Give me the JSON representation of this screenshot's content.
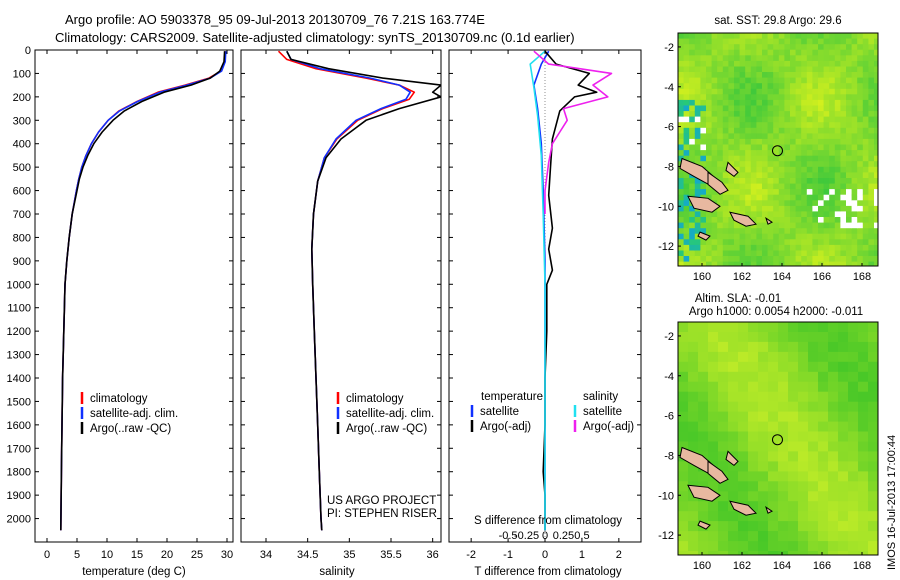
{
  "header": {
    "title_line1": "Argo profile: AO 5903378_95 09-Jul-2013 20130709_76 7.21S 163.774E",
    "title_line2": "Climatology: CARS2009. Satellite-adjusted climatology: synTS_20130709.nc (0.1d earlier)"
  },
  "colors": {
    "climatology": "#ff0000",
    "satellite": "#1030ff",
    "argo": "#000000",
    "salinity_sat": "#20e0f0",
    "salinity_argo": "#ee20ee",
    "land": "#e8b8a0"
  },
  "chart_data": [
    {
      "id": "temperature",
      "type": "line",
      "xlabel": "temperature (deg C)",
      "ylabel": "",
      "xlim": [
        -2,
        31
      ],
      "ylim": [
        2100,
        0
      ],
      "xticks": [
        0,
        5,
        10,
        15,
        20,
        25,
        30
      ],
      "yticks": [
        0,
        100,
        200,
        300,
        400,
        500,
        600,
        700,
        800,
        900,
        1000,
        1100,
        1200,
        1300,
        1400,
        1500,
        1600,
        1700,
        1800,
        1900,
        2000
      ],
      "legend": [
        "climatology",
        "satellite-adj. clim.",
        "Argo(..raw -QC)"
      ],
      "series": [
        {
          "name": "climatology",
          "color": "#ff0000",
          "x": [
            29.7,
            29.6,
            29.0,
            27.0,
            23.0,
            18.5,
            15.0,
            12.0,
            10.2,
            8.6,
            7.4,
            6.5,
            5.8,
            5.3,
            4.9,
            4.2,
            3.7,
            3.3,
            3.0,
            2.8,
            2.6,
            2.5,
            2.4,
            2.3
          ],
          "y": [
            5,
            50,
            90,
            120,
            150,
            180,
            220,
            260,
            300,
            350,
            400,
            450,
            500,
            550,
            600,
            700,
            800,
            900,
            1000,
            1200,
            1400,
            1600,
            1800,
            2050
          ]
        },
        {
          "name": "satellite-adj. clim.",
          "color": "#1030ff",
          "x": [
            29.8,
            29.7,
            29.1,
            27.2,
            23.3,
            18.8,
            15.1,
            12.1,
            10.2,
            8.6,
            7.4,
            6.5,
            5.8,
            5.3,
            4.9,
            4.2,
            3.7,
            3.3,
            3.0,
            2.8,
            2.6,
            2.5,
            2.4,
            2.3
          ],
          "y": [
            5,
            50,
            90,
            120,
            150,
            180,
            220,
            260,
            300,
            350,
            400,
            450,
            500,
            550,
            600,
            700,
            800,
            900,
            1000,
            1200,
            1400,
            1600,
            1800,
            2050
          ]
        },
        {
          "name": "Argo(..raw -QC)",
          "color": "#000000",
          "x": [
            29.6,
            29.5,
            28.8,
            27.2,
            24.0,
            19.5,
            15.8,
            12.9,
            11.0,
            9.2,
            7.8,
            6.8,
            6.0,
            5.4,
            5.0,
            4.2,
            3.7,
            3.3,
            3.0,
            2.8,
            2.6,
            2.5,
            2.4,
            2.3
          ],
          "y": [
            5,
            50,
            90,
            120,
            150,
            180,
            220,
            260,
            300,
            350,
            400,
            450,
            500,
            550,
            600,
            700,
            800,
            900,
            1000,
            1200,
            1400,
            1600,
            1800,
            2050
          ]
        }
      ]
    },
    {
      "id": "salinity",
      "type": "line",
      "xlabel": "salinity",
      "xlim": [
        33.7,
        36.1
      ],
      "ylim": [
        2100,
        0
      ],
      "xticks": [
        34,
        34.5,
        35,
        35.5,
        36
      ],
      "xticklabels": [
        "34",
        "34.5",
        "35",
        "35.5",
        "36"
      ],
      "legend": [
        "climatology",
        "satellite-adj. clim.",
        "Argo(..raw -QC)"
      ],
      "annotation": [
        "US ARGO PROJECT",
        "PI: STEPHEN RISER"
      ],
      "series": [
        {
          "name": "climatology",
          "color": "#ff0000",
          "x": [
            34.15,
            34.25,
            34.6,
            35.2,
            35.6,
            35.78,
            35.72,
            35.4,
            35.1,
            34.85,
            34.7,
            34.62,
            34.57,
            34.55,
            34.56,
            34.58,
            34.6,
            34.62,
            34.64,
            34.66,
            34.67
          ],
          "y": [
            5,
            40,
            80,
            120,
            150,
            180,
            210,
            250,
            300,
            380,
            460,
            560,
            700,
            850,
            1000,
            1200,
            1400,
            1600,
            1800,
            2000,
            2050
          ]
        },
        {
          "name": "satellite-adj. clim.",
          "color": "#1030ff",
          "x": [
            34.25,
            34.3,
            34.65,
            35.25,
            35.6,
            35.73,
            35.68,
            35.38,
            35.08,
            34.84,
            34.7,
            34.62,
            34.57,
            34.55,
            34.56,
            34.58,
            34.6,
            34.62,
            34.64,
            34.66,
            34.67
          ],
          "y": [
            5,
            40,
            80,
            120,
            150,
            180,
            210,
            250,
            300,
            380,
            460,
            560,
            700,
            850,
            1000,
            1200,
            1400,
            1600,
            1800,
            2000,
            2050
          ]
        },
        {
          "name": "Argo(..raw -QC)",
          "color": "#000000",
          "x": [
            34.25,
            34.3,
            34.75,
            35.4,
            36.1,
            36.0,
            36.1,
            35.6,
            35.2,
            34.9,
            34.72,
            34.62,
            34.57,
            34.55,
            34.56,
            34.58,
            34.6,
            34.62,
            34.64,
            34.66,
            34.67
          ],
          "y": [
            5,
            40,
            80,
            120,
            150,
            180,
            200,
            250,
            300,
            380,
            460,
            560,
            700,
            850,
            1000,
            1200,
            1400,
            1600,
            1800,
            2000,
            2050
          ]
        }
      ]
    },
    {
      "id": "difference",
      "type": "line",
      "xlabel": "T difference from climatology",
      "xlabel_top": "S difference from climatology",
      "xlim": [
        -2.6,
        2.6
      ],
      "ylim": [
        2100,
        0
      ],
      "xticks": [
        -2,
        -1,
        0,
        1,
        2
      ],
      "s_xticks": [
        -1,
        -0.5,
        0,
        0.5,
        1
      ],
      "s_xticklabels": [
        "-0.5",
        "-0.25",
        "0",
        "0.25",
        "0.5"
      ],
      "legend_titles": [
        "temperature",
        "salinity"
      ],
      "legend_t": [
        "satellite",
        "Argo(-adj)"
      ],
      "legend_s": [
        "satellite",
        "Argo(-adj)"
      ],
      "series": [
        {
          "name": "T satellite",
          "color": "#1030ff",
          "x": [
            0.1,
            -0.1,
            -0.3,
            -0.2,
            -0.1,
            -0.05,
            0.0,
            0.0,
            0.0,
            0.0
          ],
          "y": [
            5,
            60,
            150,
            250,
            400,
            600,
            900,
            1300,
            1700,
            2050
          ]
        },
        {
          "name": "T Argo(-adj)",
          "color": "#000000",
          "x": [
            0.0,
            0.3,
            1.2,
            0.9,
            1.4,
            0.8,
            0.4,
            0.2,
            0.15,
            0.1,
            0.2,
            0.1,
            0.2,
            0.05,
            0.05,
            0.0,
            0.0,
            -0.05,
            0.0,
            0.0,
            0.0
          ],
          "y": [
            5,
            60,
            100,
            150,
            180,
            200,
            260,
            380,
            500,
            620,
            760,
            850,
            940,
            1000,
            1200,
            1400,
            1600,
            1800,
            1900,
            2000,
            2050
          ]
        },
        {
          "name": "S satellite",
          "color": "#20e0f0",
          "x": [
            0.0,
            -0.4,
            -0.3,
            -0.2,
            -0.1,
            -0.05,
            0.0,
            0.0,
            0.0
          ],
          "y": [
            5,
            60,
            160,
            280,
            450,
            700,
            1000,
            1500,
            2050
          ]
        },
        {
          "name": "S Argo(-adj)",
          "color": "#ee20ee",
          "x": [
            -0.3,
            0.1,
            1.8,
            1.3,
            1.7,
            0.5,
            0.6,
            0.4,
            0.2,
            0.1,
            0.0,
            0.0
          ],
          "y": [
            5,
            60,
            100,
            150,
            200,
            250,
            300,
            350,
            400,
            480,
            600,
            700
          ]
        }
      ]
    },
    {
      "id": "sst-map",
      "type": "heatmap",
      "title": "sat. SST: 29.8 Argo: 29.6",
      "xticks": [
        160,
        162,
        164,
        166,
        168
      ],
      "yticks": [
        -2,
        -4,
        -6,
        -8,
        -10,
        -12
      ],
      "xlim": [
        158.8,
        168.8
      ],
      "ylim": [
        -13.0,
        -1.3
      ],
      "marker": {
        "lon": 163.774,
        "lat": -7.21
      }
    },
    {
      "id": "sla-map",
      "type": "heatmap",
      "title": "Altim. SLA: -0.01",
      "subtitle": "Argo h1000: 0.0054 h2000: -0.011",
      "xticks": [
        160,
        162,
        164,
        166,
        168
      ],
      "yticks": [
        -2,
        -4,
        -6,
        -8,
        -10,
        -12
      ],
      "xlim": [
        158.8,
        168.8
      ],
      "ylim": [
        -13.0,
        -1.3
      ],
      "marker": {
        "lon": 163.774,
        "lat": -7.21
      }
    }
  ],
  "side_label": "IMOS 16-Jul-2013 17:00:44"
}
